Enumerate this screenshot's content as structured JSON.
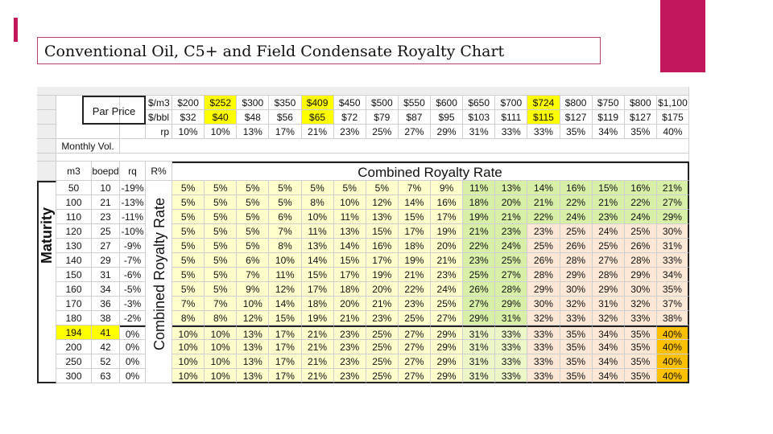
{
  "title": "Conventional Oil, C5+ and Field Condensate Royalty Chart",
  "colors": {
    "accent": "#c2185b",
    "grid_gray": "#eeeeee",
    "yellow_highlight": "#ffff00",
    "pale_yellow": "#ffffcc",
    "pale_green": "#ecf7c8",
    "green": "#d7efa7",
    "pale_orange": "#fce8d5",
    "orange": "#ffc000"
  },
  "header": {
    "par_price_label": "Par Price",
    "units": [
      "$/m3",
      "$/bbl",
      "rp"
    ],
    "monthly_vol_label": "Monthly Vol.",
    "col_m3": "m3",
    "col_boepd": "boepd",
    "col_rq": "rq",
    "col_rpct": "R%",
    "combined_title": "Combined Royalty Rate",
    "maturity_label": "Maturity",
    "vertical_label": "Combined Royalty Rate"
  },
  "columns": [
    {
      "m3": "$200",
      "bbl": "$32",
      "rp": "10%",
      "highlight": false
    },
    {
      "m3": "$252",
      "bbl": "$40",
      "rp": "10%",
      "highlight": true
    },
    {
      "m3": "$300",
      "bbl": "$48",
      "rp": "13%",
      "highlight": false
    },
    {
      "m3": "$350",
      "bbl": "$56",
      "rp": "17%",
      "highlight": false
    },
    {
      "m3": "$409",
      "bbl": "$65",
      "rp": "21%",
      "highlight": true
    },
    {
      "m3": "$450",
      "bbl": "$72",
      "rp": "23%",
      "highlight": false
    },
    {
      "m3": "$500",
      "bbl": "$79",
      "rp": "25%",
      "highlight": false
    },
    {
      "m3": "$550",
      "bbl": "$87",
      "rp": "27%",
      "highlight": false
    },
    {
      "m3": "$600",
      "bbl": "$95",
      "rp": "29%",
      "highlight": false
    },
    {
      "m3": "$650",
      "bbl": "$103",
      "rp": "31%",
      "highlight": false
    },
    {
      "m3": "$700",
      "bbl": "$111",
      "rp": "33%",
      "highlight": false
    },
    {
      "m3": "$724",
      "bbl": "$115",
      "rp": "33%",
      "highlight": true
    },
    {
      "m3": "$800",
      "bbl": "$127",
      "rp": "35%",
      "highlight": false
    },
    {
      "m3": "$750",
      "bbl": "$119",
      "rp": "34%",
      "highlight": false
    },
    {
      "m3": "$800",
      "bbl": "$127",
      "rp": "35%",
      "highlight": false
    },
    {
      "m3": "$1,100",
      "bbl": "$175",
      "rp": "40%",
      "highlight": false
    }
  ],
  "rows": [
    {
      "m3": "50",
      "boepd": "10",
      "rq": "-19%",
      "highlight": false,
      "values": [
        "5%",
        "5%",
        "5%",
        "5%",
        "5%",
        "5%",
        "5%",
        "7%",
        "9%",
        "11%",
        "13%",
        "14%",
        "16%",
        "15%",
        "16%",
        "21%"
      ]
    },
    {
      "m3": "100",
      "boepd": "21",
      "rq": "-13%",
      "highlight": false,
      "values": [
        "5%",
        "5%",
        "5%",
        "5%",
        "8%",
        "10%",
        "12%",
        "14%",
        "16%",
        "18%",
        "20%",
        "21%",
        "22%",
        "21%",
        "22%",
        "27%"
      ]
    },
    {
      "m3": "110",
      "boepd": "23",
      "rq": "-11%",
      "highlight": false,
      "values": [
        "5%",
        "5%",
        "5%",
        "6%",
        "10%",
        "11%",
        "13%",
        "15%",
        "17%",
        "19%",
        "21%",
        "22%",
        "24%",
        "23%",
        "24%",
        "29%"
      ]
    },
    {
      "m3": "120",
      "boepd": "25",
      "rq": "-10%",
      "highlight": false,
      "values": [
        "5%",
        "5%",
        "5%",
        "7%",
        "11%",
        "13%",
        "15%",
        "17%",
        "19%",
        "21%",
        "23%",
        "23%",
        "25%",
        "24%",
        "25%",
        "30%"
      ]
    },
    {
      "m3": "130",
      "boepd": "27",
      "rq": "-9%",
      "highlight": false,
      "values": [
        "5%",
        "5%",
        "5%",
        "8%",
        "13%",
        "14%",
        "16%",
        "18%",
        "20%",
        "22%",
        "24%",
        "25%",
        "26%",
        "25%",
        "26%",
        "31%"
      ]
    },
    {
      "m3": "140",
      "boepd": "29",
      "rq": "-7%",
      "highlight": false,
      "values": [
        "5%",
        "5%",
        "6%",
        "10%",
        "14%",
        "15%",
        "17%",
        "19%",
        "21%",
        "23%",
        "25%",
        "26%",
        "28%",
        "27%",
        "28%",
        "33%"
      ]
    },
    {
      "m3": "150",
      "boepd": "31",
      "rq": "-6%",
      "highlight": false,
      "values": [
        "5%",
        "5%",
        "7%",
        "11%",
        "15%",
        "17%",
        "19%",
        "21%",
        "23%",
        "25%",
        "27%",
        "28%",
        "29%",
        "28%",
        "29%",
        "34%"
      ]
    },
    {
      "m3": "160",
      "boepd": "34",
      "rq": "-5%",
      "highlight": false,
      "values": [
        "5%",
        "5%",
        "9%",
        "12%",
        "17%",
        "18%",
        "20%",
        "22%",
        "24%",
        "26%",
        "28%",
        "29%",
        "30%",
        "29%",
        "30%",
        "35%"
      ]
    },
    {
      "m3": "170",
      "boepd": "36",
      "rq": "-3%",
      "highlight": false,
      "values": [
        "7%",
        "7%",
        "10%",
        "14%",
        "18%",
        "20%",
        "21%",
        "23%",
        "25%",
        "27%",
        "29%",
        "30%",
        "32%",
        "31%",
        "32%",
        "37%"
      ]
    },
    {
      "m3": "180",
      "boepd": "38",
      "rq": "-2%",
      "highlight": false,
      "values": [
        "8%",
        "8%",
        "12%",
        "15%",
        "19%",
        "21%",
        "23%",
        "25%",
        "27%",
        "29%",
        "31%",
        "32%",
        "33%",
        "32%",
        "33%",
        "38%"
      ]
    },
    {
      "m3": "194",
      "boepd": "41",
      "rq": "0%",
      "highlight": true,
      "values": [
        "10%",
        "10%",
        "13%",
        "17%",
        "21%",
        "23%",
        "25%",
        "27%",
        "29%",
        "31%",
        "33%",
        "33%",
        "35%",
        "34%",
        "35%",
        "40%"
      ]
    },
    {
      "m3": "200",
      "boepd": "42",
      "rq": "0%",
      "highlight": false,
      "values": [
        "10%",
        "10%",
        "13%",
        "17%",
        "21%",
        "23%",
        "25%",
        "27%",
        "29%",
        "31%",
        "33%",
        "33%",
        "35%",
        "34%",
        "35%",
        "40%"
      ]
    },
    {
      "m3": "250",
      "boepd": "52",
      "rq": "0%",
      "highlight": false,
      "values": [
        "10%",
        "10%",
        "13%",
        "17%",
        "21%",
        "23%",
        "25%",
        "27%",
        "29%",
        "31%",
        "33%",
        "33%",
        "35%",
        "34%",
        "35%",
        "40%"
      ]
    },
    {
      "m3": "300",
      "boepd": "63",
      "rq": "0%",
      "highlight": false,
      "values": [
        "10%",
        "10%",
        "13%",
        "17%",
        "21%",
        "23%",
        "25%",
        "27%",
        "29%",
        "31%",
        "33%",
        "33%",
        "35%",
        "34%",
        "35%",
        "40%"
      ]
    }
  ]
}
